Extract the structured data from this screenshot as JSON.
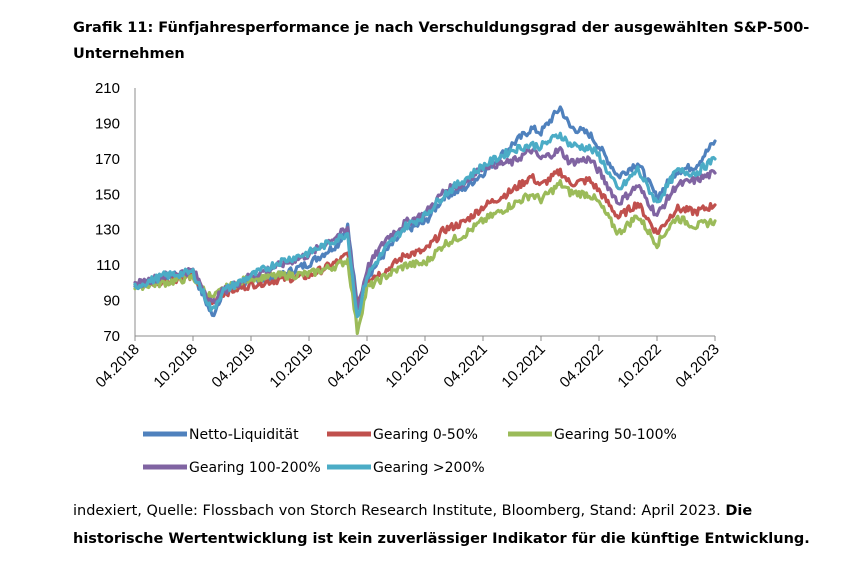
{
  "title": "Grafik 11: Fünfjahresperformance je nach Verschuldungsgrad der ausgewählten S&P-500-Unternehmen",
  "source": {
    "normal": "indexiert, Quelle: Flossbach von Storch Research Institute, Bloomberg, Stand: April 2023. ",
    "bold": "Die historische Wertentwicklung ist kein zuverlässiger Indikator für die künftige Entwicklung."
  },
  "chart_data": {
    "type": "line",
    "title": "Grafik 11: Fünfjahresperformance je nach Verschuldungsgrad der ausgewählten S&P-500-Unternehmen",
    "xlabel": "",
    "ylabel": "",
    "ylim": [
      70,
      210
    ],
    "yticks": [
      70,
      90,
      110,
      130,
      150,
      170,
      190,
      210
    ],
    "x_start": "2018-04",
    "x_end": "2023-04",
    "xticks": [
      "04.2018",
      "10.2018",
      "04.2019",
      "10.2019",
      "04.2020",
      "10.2020",
      "04.2021",
      "10.2021",
      "04.2022",
      "10.2022",
      "04.2023"
    ],
    "grid": false,
    "legend_position": "bottom",
    "series": [
      {
        "name": "Netto-Liquidität",
        "color": "#4F81BD",
        "x": [
          "2018-04",
          "2018-07",
          "2018-10",
          "2018-12",
          "2019-01",
          "2019-04",
          "2019-07",
          "2019-10",
          "2020-01",
          "2020-02",
          "2020-03",
          "2020-04",
          "2020-06",
          "2020-08",
          "2020-10",
          "2020-12",
          "2021-02",
          "2021-04",
          "2021-07",
          "2021-09",
          "2021-10",
          "2021-12",
          "2022-01",
          "2022-03",
          "2022-04",
          "2022-06",
          "2022-08",
          "2022-10",
          "2022-12",
          "2023-02",
          "2023-04"
        ],
        "y": [
          98,
          103,
          106,
          81,
          94,
          101,
          104,
          111,
          122,
          132,
          87,
          103,
          118,
          130,
          134,
          149,
          153,
          162,
          178,
          187,
          185,
          199,
          188,
          184,
          177,
          160,
          168,
          148,
          163,
          166,
          180
        ]
      },
      {
        "name": "Gearing 0-50%",
        "color": "#C0504D",
        "x": [
          "2018-04",
          "2018-07",
          "2018-10",
          "2018-12",
          "2019-01",
          "2019-04",
          "2019-07",
          "2019-10",
          "2020-01",
          "2020-02",
          "2020-03",
          "2020-04",
          "2020-06",
          "2020-08",
          "2020-10",
          "2020-12",
          "2021-02",
          "2021-04",
          "2021-07",
          "2021-09",
          "2021-10",
          "2021-12",
          "2022-01",
          "2022-03",
          "2022-04",
          "2022-06",
          "2022-08",
          "2022-10",
          "2022-12",
          "2023-02",
          "2023-04"
        ],
        "y": [
          98,
          101,
          104,
          88,
          94,
          99,
          102,
          104,
          112,
          116,
          89,
          102,
          107,
          116,
          118,
          130,
          134,
          143,
          152,
          160,
          155,
          163,
          156,
          158,
          152,
          137,
          145,
          128,
          142,
          140,
          144
        ]
      },
      {
        "name": "Gearing 50-100%",
        "color": "#9BBB59",
        "x": [
          "2018-04",
          "2018-07",
          "2018-10",
          "2018-12",
          "2019-01",
          "2019-04",
          "2019-07",
          "2019-10",
          "2020-01",
          "2020-02",
          "2020-03",
          "2020-04",
          "2020-06",
          "2020-08",
          "2020-10",
          "2020-12",
          "2021-02",
          "2021-04",
          "2021-07",
          "2021-09",
          "2021-10",
          "2021-12",
          "2022-01",
          "2022-03",
          "2022-04",
          "2022-06",
          "2022-08",
          "2022-10",
          "2022-12",
          "2023-02",
          "2023-04"
        ],
        "y": [
          98,
          100,
          103,
          91,
          96,
          103,
          104,
          105,
          110,
          113,
          73,
          97,
          104,
          110,
          111,
          122,
          127,
          135,
          144,
          150,
          147,
          156,
          151,
          150,
          145,
          128,
          138,
          122,
          137,
          132,
          135
        ]
      },
      {
        "name": "Gearing 100-200%",
        "color": "#8064A2",
        "x": [
          "2018-04",
          "2018-07",
          "2018-10",
          "2018-12",
          "2019-01",
          "2019-04",
          "2019-07",
          "2019-10",
          "2020-01",
          "2020-02",
          "2020-03",
          "2020-04",
          "2020-06",
          "2020-08",
          "2020-10",
          "2020-12",
          "2021-02",
          "2021-04",
          "2021-07",
          "2021-09",
          "2021-10",
          "2021-12",
          "2022-01",
          "2022-03",
          "2022-04",
          "2022-06",
          "2022-08",
          "2022-10",
          "2022-12",
          "2023-02",
          "2023-04"
        ],
        "y": [
          99,
          104,
          107,
          88,
          95,
          104,
          110,
          116,
          127,
          130,
          85,
          108,
          125,
          134,
          139,
          152,
          156,
          166,
          168,
          175,
          170,
          175,
          168,
          170,
          163,
          145,
          155,
          138,
          155,
          158,
          162
        ]
      },
      {
        "name": "Gearing >200%",
        "color": "#4BACC6",
        "x": [
          "2018-04",
          "2018-07",
          "2018-10",
          "2018-12",
          "2019-01",
          "2019-04",
          "2019-07",
          "2019-10",
          "2020-01",
          "2020-02",
          "2020-03",
          "2020-04",
          "2020-06",
          "2020-08",
          "2020-10",
          "2020-12",
          "2021-02",
          "2021-04",
          "2021-07",
          "2021-09",
          "2021-10",
          "2021-12",
          "2022-01",
          "2022-03",
          "2022-04",
          "2022-06",
          "2022-08",
          "2022-10",
          "2022-12",
          "2023-02",
          "2023-04"
        ],
        "y": [
          98,
          104,
          106,
          84,
          95,
          104,
          112,
          117,
          125,
          128,
          80,
          104,
          120,
          132,
          138,
          150,
          158,
          166,
          175,
          178,
          177,
          184,
          178,
          176,
          172,
          152,
          164,
          145,
          163,
          162,
          170
        ]
      }
    ]
  }
}
